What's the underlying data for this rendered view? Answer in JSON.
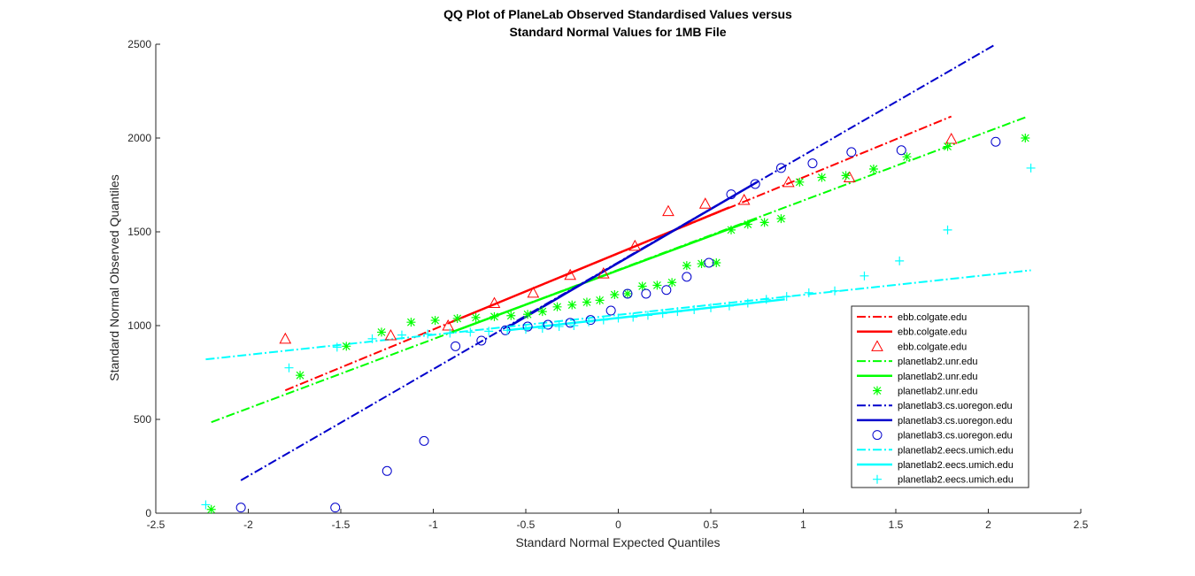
{
  "chart_data": {
    "type": "scatter",
    "title_lines": [
      "QQ Plot of PlaneLab Observed Standardised Values versus",
      "Standard Normal Values for 1MB File"
    ],
    "xlabel": "Standard Normal Expected Quantiles",
    "ylabel": "Standard Normal Observed Quantiles",
    "xlim": [
      -2.5,
      2.5
    ],
    "ylim": [
      0,
      2500
    ],
    "xticks": [
      -2.5,
      -2,
      -1.5,
      -1,
      -0.5,
      0,
      0.5,
      1,
      1.5,
      2,
      2.5
    ],
    "xtick_labels": [
      "-2.5",
      "-2",
      "-1.5",
      "-1",
      "-0.5",
      "0",
      "0.5",
      "1",
      "1.5",
      "2",
      "2.5"
    ],
    "yticks": [
      0,
      500,
      1000,
      1500,
      2000,
      2500
    ],
    "ytick_labels": [
      "0",
      "500",
      "1000",
      "1500",
      "2000",
      "2500"
    ],
    "grid": false,
    "legend_position": "right",
    "series": [
      {
        "name": "ebb.colgate.edu",
        "color": "#ff0000",
        "marker": "triangle",
        "points": [
          [
            -1.8,
            930
          ],
          [
            -1.23,
            948
          ],
          [
            -0.92,
            1000
          ],
          [
            -0.67,
            1120
          ],
          [
            -0.46,
            1175
          ],
          [
            -0.26,
            1270
          ],
          [
            -0.08,
            1278
          ],
          [
            0.09,
            1425
          ],
          [
            0.27,
            1610
          ],
          [
            0.47,
            1650
          ],
          [
            0.68,
            1670
          ],
          [
            0.92,
            1765
          ],
          [
            1.25,
            1790
          ],
          [
            1.8,
            1995
          ]
        ],
        "fit_dashed": [
          [
            -1.8,
            655
          ],
          [
            1.8,
            2115
          ]
        ],
        "fit_solid": [
          [
            -0.9,
            1020
          ],
          [
            0.6,
            1630
          ]
        ]
      },
      {
        "name": "planetlab2.unr.edu",
        "color": "#00ff00",
        "marker": "asterisk",
        "points": [
          [
            -2.2,
            20
          ],
          [
            -1.72,
            735
          ],
          [
            -1.47,
            890
          ],
          [
            -1.28,
            965
          ],
          [
            -1.12,
            1018
          ],
          [
            -0.99,
            1028
          ],
          [
            -0.87,
            1038
          ],
          [
            -0.77,
            1043
          ],
          [
            -0.67,
            1048
          ],
          [
            -0.58,
            1053
          ],
          [
            -0.49,
            1060
          ],
          [
            -0.41,
            1075
          ],
          [
            -0.33,
            1100
          ],
          [
            -0.25,
            1110
          ],
          [
            -0.17,
            1125
          ],
          [
            -0.1,
            1135
          ],
          [
            -0.02,
            1165
          ],
          [
            0.05,
            1170
          ],
          [
            0.13,
            1210
          ],
          [
            0.21,
            1215
          ],
          [
            0.29,
            1230
          ],
          [
            0.37,
            1320
          ],
          [
            0.45,
            1330
          ],
          [
            0.53,
            1335
          ],
          [
            0.61,
            1510
          ],
          [
            0.7,
            1540
          ],
          [
            0.79,
            1550
          ],
          [
            0.88,
            1570
          ],
          [
            0.98,
            1765
          ],
          [
            1.1,
            1790
          ],
          [
            1.23,
            1800
          ],
          [
            1.38,
            1835
          ],
          [
            1.56,
            1900
          ],
          [
            1.78,
            1955
          ],
          [
            2.2,
            2000
          ]
        ],
        "fit_dashed": [
          [
            -2.2,
            485
          ],
          [
            2.2,
            2110
          ]
        ],
        "fit_solid": [
          [
            -0.9,
            965
          ],
          [
            0.75,
            1570
          ]
        ]
      },
      {
        "name": "planetlab3.cs.uoregon.edu",
        "color": "#0000cc",
        "marker": "circle",
        "points": [
          [
            -2.04,
            30
          ],
          [
            -1.53,
            30
          ],
          [
            -1.25,
            225
          ],
          [
            -1.05,
            385
          ],
          [
            -0.88,
            890
          ],
          [
            -0.74,
            920
          ],
          [
            -0.61,
            975
          ],
          [
            -0.49,
            995
          ],
          [
            -0.38,
            1005
          ],
          [
            -0.26,
            1015
          ],
          [
            -0.15,
            1030
          ],
          [
            -0.04,
            1080
          ],
          [
            0.05,
            1170
          ],
          [
            0.15,
            1170
          ],
          [
            0.26,
            1190
          ],
          [
            0.37,
            1260
          ],
          [
            0.49,
            1335
          ],
          [
            0.61,
            1700
          ],
          [
            0.74,
            1755
          ],
          [
            0.88,
            1840
          ],
          [
            1.05,
            1865
          ],
          [
            1.26,
            1925
          ],
          [
            1.53,
            1935
          ],
          [
            2.04,
            1980
          ]
        ],
        "fit_dashed": [
          [
            -2.04,
            175
          ],
          [
            2.04,
            2500
          ]
        ],
        "fit_solid": [
          [
            -0.6,
            990
          ],
          [
            0.75,
            1765
          ]
        ]
      },
      {
        "name": "planetlab2.eecs.umich.edu",
        "color": "#00ffff",
        "marker": "plus",
        "points": [
          [
            -2.23,
            45
          ],
          [
            -1.78,
            775
          ],
          [
            -1.52,
            885
          ],
          [
            -1.33,
            930
          ],
          [
            -1.17,
            950
          ],
          [
            -1.03,
            955
          ],
          [
            -0.91,
            960
          ],
          [
            -0.8,
            965
          ],
          [
            -0.7,
            970
          ],
          [
            -0.6,
            975
          ],
          [
            -0.5,
            980
          ],
          [
            -0.41,
            985
          ],
          [
            -0.32,
            995
          ],
          [
            -0.24,
            1000
          ],
          [
            -0.16,
            1020
          ],
          [
            -0.08,
            1030
          ],
          [
            0.0,
            1040
          ],
          [
            0.08,
            1045
          ],
          [
            0.16,
            1055
          ],
          [
            0.24,
            1065
          ],
          [
            0.32,
            1075
          ],
          [
            0.41,
            1085
          ],
          [
            0.5,
            1095
          ],
          [
            0.6,
            1105
          ],
          [
            0.7,
            1120
          ],
          [
            0.8,
            1140
          ],
          [
            0.91,
            1155
          ],
          [
            1.03,
            1175
          ],
          [
            1.17,
            1185
          ],
          [
            1.33,
            1265
          ],
          [
            1.52,
            1345
          ],
          [
            1.78,
            1510
          ],
          [
            2.23,
            1840
          ]
        ],
        "fit_dashed": [
          [
            -2.23,
            820
          ],
          [
            2.23,
            1295
          ]
        ],
        "fit_solid": [
          [
            -0.6,
            975
          ],
          [
            0.9,
            1140
          ]
        ]
      }
    ],
    "legend_entries": [
      {
        "label": "ebb.colgate.edu",
        "style": "dashdot",
        "color": "#ff0000"
      },
      {
        "label": "ebb.colgate.edu",
        "style": "solid",
        "color": "#ff0000"
      },
      {
        "label": "ebb.colgate.edu",
        "style": "triangle",
        "color": "#ff0000"
      },
      {
        "label": "planetlab2.unr.edu",
        "style": "dashdot",
        "color": "#00ff00"
      },
      {
        "label": "planetlab2.unr.edu",
        "style": "solid",
        "color": "#00ff00"
      },
      {
        "label": "planetlab2.unr.edu",
        "style": "asterisk",
        "color": "#00ff00"
      },
      {
        "label": "planetlab3.cs.uoregon.edu",
        "style": "dashdot",
        "color": "#0000cc"
      },
      {
        "label": "planetlab3.cs.uoregon.edu",
        "style": "solid",
        "color": "#0000cc"
      },
      {
        "label": "planetlab3.cs.uoregon.edu",
        "style": "circle",
        "color": "#0000cc"
      },
      {
        "label": "planetlab2.eecs.umich.edu",
        "style": "dashdot",
        "color": "#00ffff"
      },
      {
        "label": "planetlab2.eecs.umich.edu",
        "style": "solid",
        "color": "#00ffff"
      },
      {
        "label": "planetlab2.eecs.umich.edu",
        "style": "plus",
        "color": "#00ffff"
      }
    ]
  }
}
